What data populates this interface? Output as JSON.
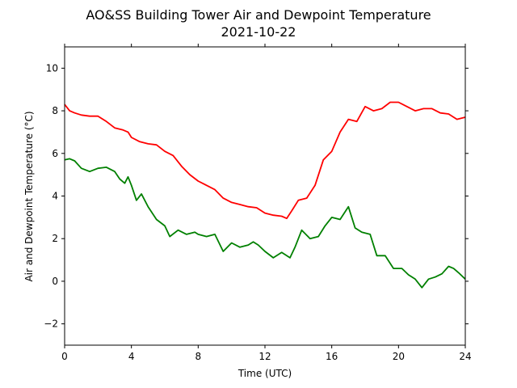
{
  "chart_data": {
    "type": "line",
    "title": "AO&SS Building Tower Air and Dewpoint Temperature",
    "subtitle": "2021-10-22",
    "xlabel": "Time (UTC)",
    "ylabel": "Air and Dewpoint Temperature (°C)",
    "xlim": [
      0,
      24
    ],
    "ylim": [
      -3,
      11
    ],
    "xticks": [
      0,
      4,
      8,
      12,
      16,
      20,
      24
    ],
    "yticks": [
      -2,
      0,
      2,
      4,
      6,
      8,
      10
    ],
    "grid": false,
    "series": [
      {
        "color": "#ff0000",
        "points": [
          [
            0,
            8.3
          ],
          [
            0.3,
            8.0
          ],
          [
            0.6,
            7.9
          ],
          [
            1.0,
            7.8
          ],
          [
            1.5,
            7.75
          ],
          [
            2.0,
            7.75
          ],
          [
            2.5,
            7.5
          ],
          [
            3.0,
            7.2
          ],
          [
            3.5,
            7.1
          ],
          [
            3.8,
            7.0
          ],
          [
            4.0,
            6.75
          ],
          [
            4.5,
            6.55
          ],
          [
            5.0,
            6.45
          ],
          [
            5.5,
            6.4
          ],
          [
            6.0,
            6.1
          ],
          [
            6.5,
            5.9
          ],
          [
            7.0,
            5.4
          ],
          [
            7.5,
            5.0
          ],
          [
            8.0,
            4.7
          ],
          [
            8.5,
            4.5
          ],
          [
            9.0,
            4.3
          ],
          [
            9.5,
            3.9
          ],
          [
            10.0,
            3.7
          ],
          [
            10.5,
            3.6
          ],
          [
            11.0,
            3.5
          ],
          [
            11.5,
            3.45
          ],
          [
            12.0,
            3.2
          ],
          [
            12.5,
            3.1
          ],
          [
            13.0,
            3.05
          ],
          [
            13.3,
            2.95
          ],
          [
            13.6,
            3.3
          ],
          [
            14.0,
            3.8
          ],
          [
            14.5,
            3.9
          ],
          [
            15.0,
            4.5
          ],
          [
            15.5,
            5.7
          ],
          [
            16.0,
            6.1
          ],
          [
            16.5,
            7.0
          ],
          [
            17.0,
            7.6
          ],
          [
            17.5,
            7.5
          ],
          [
            18.0,
            8.2
          ],
          [
            18.5,
            8.0
          ],
          [
            19.0,
            8.1
          ],
          [
            19.5,
            8.4
          ],
          [
            20.0,
            8.4
          ],
          [
            20.5,
            8.2
          ],
          [
            21.0,
            8.0
          ],
          [
            21.5,
            8.1
          ],
          [
            22.0,
            8.1
          ],
          [
            22.5,
            7.9
          ],
          [
            23.0,
            7.85
          ],
          [
            23.5,
            7.6
          ],
          [
            24.0,
            7.7
          ]
        ]
      },
      {
        "color": "#008000",
        "points": [
          [
            0,
            5.7
          ],
          [
            0.3,
            5.75
          ],
          [
            0.6,
            5.65
          ],
          [
            1.0,
            5.3
          ],
          [
            1.5,
            5.15
          ],
          [
            2.0,
            5.3
          ],
          [
            2.5,
            5.35
          ],
          [
            3.0,
            5.15
          ],
          [
            3.3,
            4.8
          ],
          [
            3.6,
            4.6
          ],
          [
            3.8,
            4.9
          ],
          [
            4.0,
            4.5
          ],
          [
            4.3,
            3.8
          ],
          [
            4.6,
            4.1
          ],
          [
            5.0,
            3.5
          ],
          [
            5.5,
            2.9
          ],
          [
            6.0,
            2.6
          ],
          [
            6.3,
            2.1
          ],
          [
            6.8,
            2.4
          ],
          [
            7.3,
            2.2
          ],
          [
            7.8,
            2.3
          ],
          [
            8.0,
            2.2
          ],
          [
            8.5,
            2.1
          ],
          [
            9.0,
            2.2
          ],
          [
            9.5,
            1.4
          ],
          [
            10.0,
            1.8
          ],
          [
            10.5,
            1.6
          ],
          [
            11.0,
            1.7
          ],
          [
            11.3,
            1.85
          ],
          [
            11.6,
            1.7
          ],
          [
            12.0,
            1.4
          ],
          [
            12.5,
            1.1
          ],
          [
            13.0,
            1.35
          ],
          [
            13.5,
            1.1
          ],
          [
            13.8,
            1.6
          ],
          [
            14.2,
            2.4
          ],
          [
            14.7,
            2.0
          ],
          [
            15.2,
            2.1
          ],
          [
            15.6,
            2.6
          ],
          [
            16.0,
            3.0
          ],
          [
            16.5,
            2.9
          ],
          [
            17.0,
            3.5
          ],
          [
            17.4,
            2.5
          ],
          [
            17.8,
            2.3
          ],
          [
            18.3,
            2.2
          ],
          [
            18.7,
            1.2
          ],
          [
            19.2,
            1.2
          ],
          [
            19.7,
            0.6
          ],
          [
            20.2,
            0.6
          ],
          [
            20.6,
            0.3
          ],
          [
            21.0,
            0.1
          ],
          [
            21.4,
            -0.3
          ],
          [
            21.8,
            0.1
          ],
          [
            22.2,
            0.2
          ],
          [
            22.6,
            0.35
          ],
          [
            23.0,
            0.7
          ],
          [
            23.3,
            0.6
          ],
          [
            23.6,
            0.4
          ],
          [
            24.0,
            0.1
          ]
        ]
      }
    ]
  }
}
